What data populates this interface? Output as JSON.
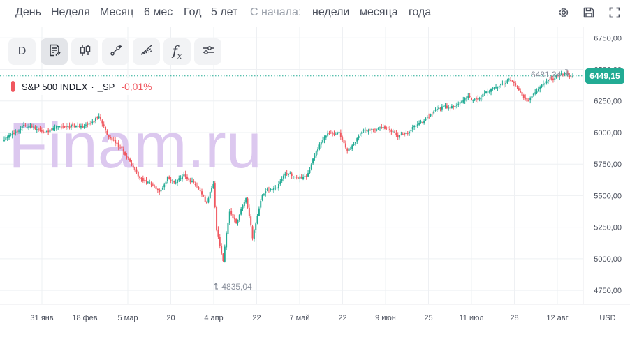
{
  "toolbar_top": {
    "periods": [
      "День",
      "Неделя",
      "Месяц",
      "6 мес",
      "Год",
      "5 лет"
    ],
    "since_label": "С начала:",
    "since_options": [
      "недели",
      "месяца",
      "года"
    ],
    "icons": [
      "gear-icon",
      "save-icon",
      "fullscreen-icon"
    ]
  },
  "tools": {
    "interval_label": "D",
    "fx_label": "f",
    "fx_sub": "x",
    "icons": [
      "chart-type-icon",
      "candles-icon",
      "draw-line-icon",
      "draw-shape-icon",
      "indicators-icon",
      "settings-sliders-icon"
    ]
  },
  "watermark": "Finam.ru",
  "legend": {
    "name": "S&P 500 INDEX",
    "separator": "·",
    "ticker": "_SP",
    "change": "-0,01%"
  },
  "colors": {
    "up": "#22ab94",
    "down": "#f0575f",
    "watermark": "#dcc8ef",
    "price_tag": "#22ab94",
    "grid": "#eef0f3"
  },
  "chart_data": {
    "type": "candlestick",
    "title": "",
    "y_axis": {
      "ticks": [
        4750,
        5000,
        5250,
        5500,
        5750,
        6000,
        6250,
        6500,
        6750
      ],
      "tick_labels": [
        "4750,00",
        "5000,00",
        "5250,00",
        "5500,00",
        "5750,00",
        "6000,00",
        "6250,00",
        "6500,00",
        "6750,00"
      ],
      "range": [
        4640,
        6840
      ],
      "unit_label": "USD"
    },
    "x_axis": {
      "labels": [
        "31 янв",
        "18 фев",
        "5 мар",
        "20",
        "4 апр",
        "22",
        "7 май",
        "22",
        "9 июн",
        "25",
        "11 июл",
        "28",
        "12 авг"
      ]
    },
    "last_price": 6449.15,
    "last_price_label": "6449,15",
    "max": {
      "value": 6481.34,
      "label": "6481,34"
    },
    "min": {
      "value": 4835.04,
      "label": "4835,04"
    },
    "close_path": [
      [
        0,
        5930
      ],
      [
        5,
        6000
      ],
      [
        12,
        6045
      ],
      [
        20,
        6040
      ],
      [
        27,
        6000
      ],
      [
        35,
        6060
      ],
      [
        45,
        6040
      ],
      [
        52,
        6080
      ],
      [
        58,
        6115
      ],
      [
        63,
        5990
      ],
      [
        70,
        5900
      ],
      [
        78,
        5740
      ],
      [
        85,
        5620
      ],
      [
        95,
        5540
      ],
      [
        100,
        5630
      ],
      [
        105,
        5590
      ],
      [
        110,
        5680
      ],
      [
        118,
        5560
      ],
      [
        124,
        5450
      ],
      [
        128,
        5610
      ],
      [
        130,
        5220
      ],
      [
        134,
        4980
      ],
      [
        138,
        5390
      ],
      [
        142,
        5290
      ],
      [
        148,
        5470
      ],
      [
        152,
        5180
      ],
      [
        158,
        5520
      ],
      [
        166,
        5560
      ],
      [
        172,
        5690
      ],
      [
        179,
        5630
      ],
      [
        185,
        5660
      ],
      [
        193,
        5900
      ],
      [
        198,
        6000
      ],
      [
        205,
        5990
      ],
      [
        210,
        5840
      ],
      [
        218,
        6000
      ],
      [
        225,
        6020
      ],
      [
        232,
        6055
      ],
      [
        240,
        5975
      ],
      [
        248,
        6005
      ],
      [
        256,
        6090
      ],
      [
        262,
        6165
      ],
      [
        270,
        6200
      ],
      [
        278,
        6225
      ],
      [
        284,
        6275
      ],
      [
        290,
        6270
      ],
      [
        298,
        6330
      ],
      [
        304,
        6390
      ],
      [
        310,
        6410
      ],
      [
        316,
        6320
      ],
      [
        320,
        6250
      ],
      [
        326,
        6330
      ],
      [
        332,
        6420
      ],
      [
        338,
        6440
      ],
      [
        344,
        6465
      ],
      [
        348,
        6449
      ]
    ]
  }
}
